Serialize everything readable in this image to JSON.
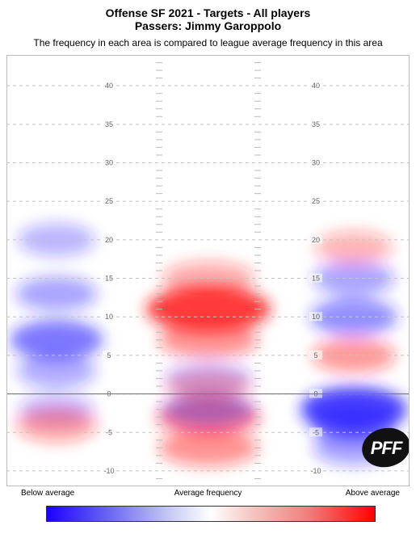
{
  "chart_data": {
    "type": "heatmap",
    "title": "Offense SF 2021 - Targets - All players",
    "subtitle_line": "Passers: Jimmy Garoppolo",
    "description": "The frequency in each area is compared to league average frequency in this area",
    "y_range": [
      -12,
      44
    ],
    "y_ticks": [
      40,
      35,
      30,
      25,
      20,
      15,
      10,
      5,
      0,
      -5,
      -10
    ],
    "line_of_scrimmage": 0,
    "colorbar": {
      "low_label": "Below average",
      "mid_label": "Average frequency",
      "high_label": "Above average",
      "low_color": "#1a00ff",
      "mid_color": "#ffffff",
      "high_color": "#ff0000"
    },
    "hotspots": [
      {
        "area": "left",
        "yard": 7,
        "relative": -0.65
      },
      {
        "area": "left",
        "yard": 13,
        "relative": -0.35
      },
      {
        "area": "left",
        "yard": 3,
        "relative": -0.3
      },
      {
        "area": "left",
        "yard": 20,
        "relative": -0.25
      },
      {
        "area": "left",
        "yard": -2,
        "relative": -0.2
      },
      {
        "area": "middle",
        "yard": 11,
        "relative": 1.0
      },
      {
        "area": "middle",
        "yard": 7,
        "relative": 0.45
      },
      {
        "area": "middle",
        "yard": 15,
        "relative": 0.3
      },
      {
        "area": "middle",
        "yard": 2,
        "relative": -0.2
      },
      {
        "area": "middle",
        "yard": -3,
        "relative": 0.55
      },
      {
        "area": "middle",
        "yard": -7,
        "relative": 0.45
      },
      {
        "area": "middle",
        "yard": -2,
        "relative": -0.3
      },
      {
        "area": "right",
        "yard": 10,
        "relative": -0.5
      },
      {
        "area": "right",
        "yard": 15,
        "relative": -0.35
      },
      {
        "area": "right",
        "yard": 5,
        "relative": 0.4
      },
      {
        "area": "right",
        "yard": 19,
        "relative": 0.25
      },
      {
        "area": "right",
        "yard": -2,
        "relative": -1.0
      },
      {
        "area": "right",
        "yard": -4,
        "relative": -0.5
      },
      {
        "area": "right",
        "yard": -7,
        "relative": -0.35
      },
      {
        "area": "left",
        "yard": -4,
        "relative": 0.35
      },
      {
        "area": "middle",
        "yard": 1,
        "relative": 0.2
      }
    ]
  },
  "logo": {
    "text": "PFF"
  }
}
